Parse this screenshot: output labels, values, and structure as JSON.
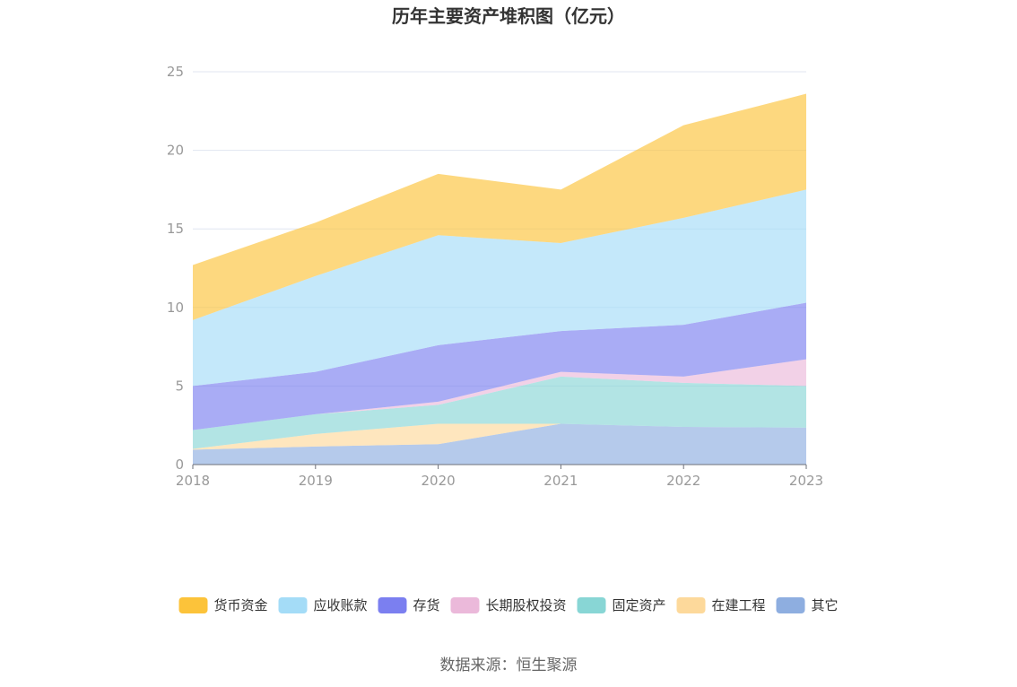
{
  "chart_data": {
    "type": "area",
    "stacked": true,
    "title": "历年主要资产堆积图（亿元）",
    "x": [
      "2018",
      "2019",
      "2020",
      "2021",
      "2022",
      "2023"
    ],
    "ylim": [
      0,
      25
    ],
    "yticks": [
      "0",
      "5",
      "10",
      "15",
      "20",
      "25"
    ],
    "grid": true,
    "legend_position": "bottom",
    "series": [
      {
        "name": "其它",
        "color": "#8eaee0",
        "values": [
          0.95,
          1.15,
          1.3,
          2.6,
          2.4,
          2.35
        ]
      },
      {
        "name": "在建工程",
        "color": "#fdd99b",
        "values": [
          0.05,
          0.8,
          1.3,
          0.0,
          0.0,
          0.0
        ]
      },
      {
        "name": "固定资产",
        "color": "#88d6d5",
        "values": [
          1.2,
          1.25,
          1.2,
          3.0,
          2.8,
          2.65
        ]
      },
      {
        "name": "长期股权投资",
        "color": "#ebb9da",
        "values": [
          0.0,
          0.0,
          0.2,
          0.3,
          0.4,
          1.7
        ]
      },
      {
        "name": "存货",
        "color": "#7b7ff0",
        "values": [
          2.8,
          2.7,
          3.6,
          2.6,
          3.3,
          3.6
        ]
      },
      {
        "name": "应收账款",
        "color": "#a4dcf7",
        "values": [
          4.2,
          6.1,
          7.0,
          5.6,
          6.8,
          7.2
        ]
      },
      {
        "name": "货币资金",
        "color": "#fcc33a",
        "values": [
          3.5,
          3.4,
          3.9,
          3.4,
          5.9,
          6.1
        ]
      }
    ],
    "legend_order": [
      "货币资金",
      "应收账款",
      "存货",
      "长期股权投资",
      "固定资产",
      "在建工程",
      "其它"
    ]
  },
  "footer": {
    "source": "数据来源：恒生聚源"
  }
}
